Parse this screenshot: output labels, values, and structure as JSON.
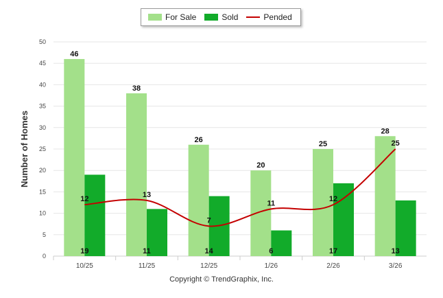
{
  "chart_data": {
    "type": "bar",
    "categories": [
      "10/25",
      "11/25",
      "12/25",
      "1/26",
      "2/26",
      "3/26"
    ],
    "series": [
      {
        "name": "For Sale",
        "type": "bar",
        "color": "#a3e08a",
        "values": [
          46,
          38,
          26,
          20,
          25,
          28
        ]
      },
      {
        "name": "Sold",
        "type": "bar",
        "color": "#12ab2a",
        "values": [
          19,
          11,
          14,
          6,
          17,
          13
        ]
      },
      {
        "name": "Pended",
        "type": "line",
        "color": "#c40000",
        "values": [
          12,
          13,
          7,
          11,
          12,
          25
        ]
      }
    ],
    "title": "",
    "xlabel": "",
    "ylabel": "Number of Homes",
    "ylim": [
      0,
      50
    ],
    "yticks": [
      0,
      5,
      10,
      15,
      20,
      25,
      30,
      35,
      40,
      45,
      50
    ],
    "grid": true,
    "legend": "top-center"
  },
  "footer": {
    "copyright": "Copyright © TrendGraphix, Inc."
  }
}
